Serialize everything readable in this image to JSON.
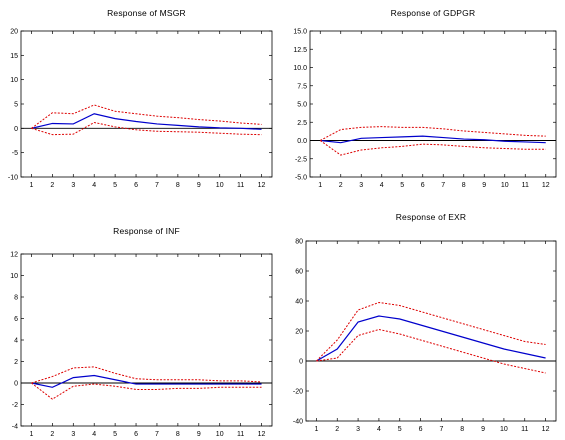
{
  "chart_data": [
    {
      "type": "line",
      "title": "Response of MSGR",
      "x": [
        1,
        2,
        3,
        4,
        5,
        6,
        7,
        8,
        9,
        10,
        11,
        12
      ],
      "ylim": [
        -10,
        20
      ],
      "yticks": [
        -10,
        -5,
        0,
        5,
        10,
        15,
        20
      ],
      "grid": false,
      "legend": "none",
      "series": [
        {
          "role": "response",
          "color": "#0000cc",
          "style": "solid",
          "values": [
            0,
            1,
            0.9,
            3,
            2,
            1.4,
            0.9,
            0.6,
            0.3,
            0.1,
            0,
            -0.2
          ]
        },
        {
          "role": "upper",
          "color": "#dd0000",
          "style": "dashed",
          "values": [
            0,
            3.2,
            3,
            4.8,
            3.5,
            3,
            2.5,
            2.2,
            1.8,
            1.5,
            1.1,
            0.8
          ]
        },
        {
          "role": "lower",
          "color": "#dd0000",
          "style": "dashed",
          "values": [
            0,
            -1.3,
            -1.2,
            1.2,
            0.3,
            -0.3,
            -0.6,
            -0.7,
            -0.8,
            -1,
            -1.2,
            -1.3
          ]
        }
      ]
    },
    {
      "type": "line",
      "title": "Response of GDPGR",
      "x": [
        1,
        2,
        3,
        4,
        5,
        6,
        7,
        8,
        9,
        10,
        11,
        12
      ],
      "ylim": [
        -5,
        15
      ],
      "yticks": [
        -5,
        -2.5,
        0,
        2.5,
        5,
        7.5,
        10,
        12.5,
        15
      ],
      "ytick_labels": [
        "-5.0",
        "-2.5",
        "0.0",
        "2.5",
        "5.0",
        "7.5",
        "10.0",
        "12.5",
        "15.0"
      ],
      "grid": false,
      "legend": "none",
      "series": [
        {
          "role": "response",
          "color": "#0000cc",
          "style": "solid",
          "values": [
            0,
            -0.3,
            0.3,
            0.4,
            0.5,
            0.6,
            0.4,
            0.2,
            0.1,
            -0.1,
            -0.2,
            -0.3
          ]
        },
        {
          "role": "upper",
          "color": "#dd0000",
          "style": "dashed",
          "values": [
            0,
            1.5,
            1.8,
            1.9,
            1.8,
            1.8,
            1.6,
            1.3,
            1.1,
            0.9,
            0.7,
            0.6
          ]
        },
        {
          "role": "lower",
          "color": "#dd0000",
          "style": "dashed",
          "values": [
            0,
            -2,
            -1.3,
            -1,
            -0.8,
            -0.5,
            -0.6,
            -0.8,
            -1,
            -1.1,
            -1.2,
            -1.2
          ]
        }
      ]
    },
    {
      "type": "line",
      "title": "Response of INF",
      "x": [
        1,
        2,
        3,
        4,
        5,
        6,
        7,
        8,
        9,
        10,
        11,
        12
      ],
      "ylim": [
        -4,
        12
      ],
      "yticks": [
        -4,
        -2,
        0,
        2,
        4,
        6,
        8,
        10,
        12
      ],
      "grid": false,
      "legend": "none",
      "series": [
        {
          "role": "response",
          "color": "#0000cc",
          "style": "solid",
          "values": [
            0,
            -0.4,
            0.5,
            0.7,
            0.3,
            -0.1,
            -0.1,
            -0.1,
            -0.1,
            -0.1,
            -0.1,
            -0.1
          ]
        },
        {
          "role": "upper",
          "color": "#dd0000",
          "style": "dashed",
          "values": [
            0,
            0.6,
            1.4,
            1.5,
            0.9,
            0.4,
            0.3,
            0.3,
            0.3,
            0.2,
            0.2,
            0.1
          ]
        },
        {
          "role": "lower",
          "color": "#dd0000",
          "style": "dashed",
          "values": [
            0,
            -1.5,
            -0.3,
            -0.1,
            -0.3,
            -0.6,
            -0.6,
            -0.5,
            -0.5,
            -0.4,
            -0.4,
            -0.4
          ]
        }
      ]
    },
    {
      "type": "line",
      "title": "Response of EXR",
      "x": [
        1,
        2,
        3,
        4,
        5,
        6,
        7,
        8,
        9,
        10,
        11,
        12
      ],
      "ylim": [
        -40,
        80
      ],
      "yticks": [
        -40,
        -20,
        0,
        20,
        40,
        60,
        80
      ],
      "grid": false,
      "legend": "none",
      "series": [
        {
          "role": "response",
          "color": "#0000cc",
          "style": "solid",
          "values": [
            0,
            8,
            26,
            30,
            28,
            24,
            20,
            16,
            12,
            8,
            5,
            2
          ]
        },
        {
          "role": "upper",
          "color": "#dd0000",
          "style": "dashed",
          "values": [
            0,
            14,
            34,
            39,
            37,
            33,
            29,
            25,
            21,
            17,
            13,
            11
          ]
        },
        {
          "role": "lower",
          "color": "#dd0000",
          "style": "dashed",
          "values": [
            0,
            2,
            17,
            21,
            18,
            14,
            10,
            6,
            2,
            -2,
            -5,
            -8
          ]
        }
      ]
    }
  ]
}
